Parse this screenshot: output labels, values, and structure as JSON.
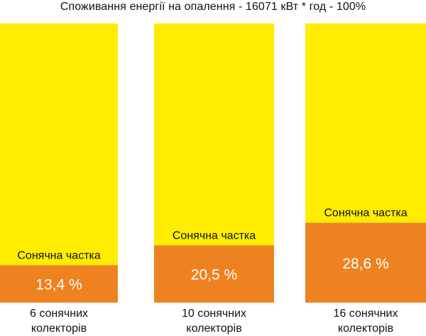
{
  "chart_data": {
    "type": "bar",
    "title": "Споживання енергії на опалення - 16071 кВт * год - 100%",
    "categories_line1": [
      "6 сонячних",
      "10 сонячних",
      "16 сонячних"
    ],
    "categories_line2": [
      "колекторів",
      "колекторів",
      "колекторів"
    ],
    "series": [
      {
        "values": [
          13.4,
          20.5,
          28.6
        ],
        "value_labels": [
          "13,4 %",
          "20,5 %",
          "28,6 %"
        ],
        "segment_label": "Сонячна частка"
      },
      {
        "values": [
          86.6,
          79.5,
          71.4
        ]
      }
    ],
    "ylim": [
      0,
      100
    ],
    "stacked": true,
    "grid": false,
    "legend": "none"
  },
  "colors": {
    "solar": "#ee8221",
    "remainder": "#ffec00",
    "text_dark": "#111111",
    "text_light": "#ffffff"
  }
}
